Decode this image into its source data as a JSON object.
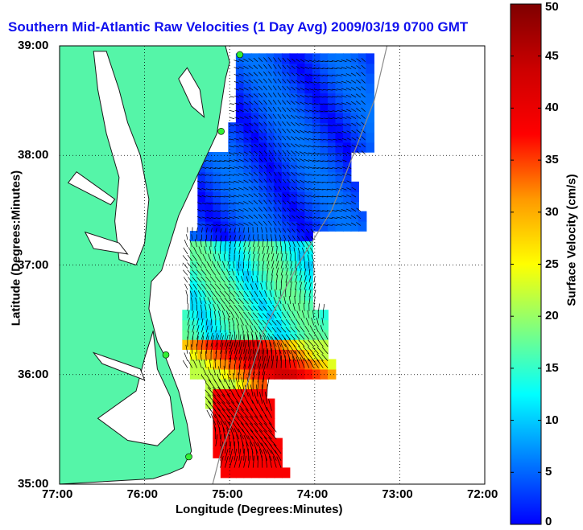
{
  "title": "Southern Mid-Atlantic Raw Velocities (1 Day Avg) 2009/03/19 0700 GMT",
  "colors": {
    "land": "#55f5a8",
    "coast": "#1a1a1a",
    "ocean_bg": "#ffffff",
    "vector": "#000000",
    "station": "#33ee33",
    "bathymetry": "#8a8a8a"
  },
  "chart_data": {
    "type": "heatmap",
    "title": "Southern Mid-Atlantic Raw Velocities (1 Day Avg) 2009/03/19 0700 GMT",
    "xlabel": "Longitude (Degrees:Minutes)",
    "ylabel": "Latitude (Degrees:Minutes)",
    "xlim": [
      -77,
      -72
    ],
    "ylim": [
      35,
      39
    ],
    "x_ticks": [
      "77:00",
      "76:00",
      "75:00",
      "74:00",
      "73:00",
      "72:00"
    ],
    "x_tick_values": [
      -77,
      -76,
      -75,
      -74,
      -73,
      -72
    ],
    "y_ticks": [
      "35:00",
      "36:00",
      "37:00",
      "38:00",
      "39:00"
    ],
    "y_tick_values": [
      35,
      36,
      37,
      38,
      39
    ],
    "grid": "dotted",
    "colorbar": {
      "label": "Surface Velocity (cm/s)",
      "min": 0,
      "max": 50,
      "ticks": [
        0,
        5,
        10,
        15,
        20,
        25,
        30,
        35,
        40,
        45,
        50
      ],
      "colormap": "jet"
    },
    "stations": [
      {
        "lon": -74.88,
        "lat": 38.92
      },
      {
        "lon": -75.1,
        "lat": 38.22
      },
      {
        "lon": -75.75,
        "lat": 36.18
      },
      {
        "lon": -75.48,
        "lat": 35.25
      }
    ]
  }
}
